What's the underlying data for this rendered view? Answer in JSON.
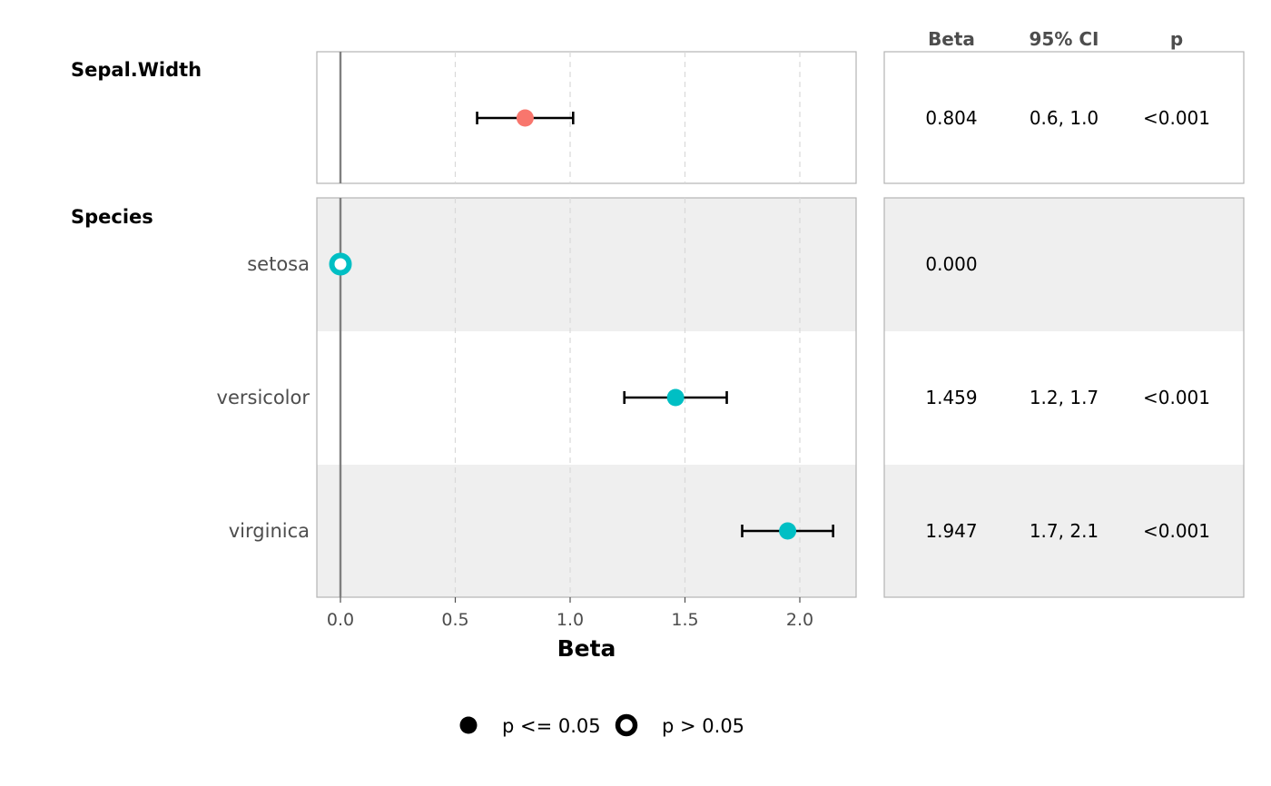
{
  "chart_data": {
    "type": "forest",
    "xlabel": "Beta",
    "xlim": [
      -0.1,
      2.25
    ],
    "xticks": [
      0.0,
      0.5,
      1.0,
      1.5,
      2.0
    ],
    "xtick_labels": [
      "0.0",
      "0.5",
      "1.0",
      "1.5",
      "2.0"
    ],
    "reference_line": 0,
    "groups": [
      {
        "name": "Sepal.Width",
        "rows": [
          {
            "label": "",
            "beta": 0.804,
            "ci_low": 0.595,
            "ci_high": 1.013,
            "significant": true,
            "color": "#F8766D",
            "beta_text": "0.804",
            "ci_text": "0.6, 1.0",
            "p_text": "<0.001"
          }
        ]
      },
      {
        "name": "Species",
        "rows": [
          {
            "label": "setosa",
            "beta": 0.0,
            "ci_low": null,
            "ci_high": null,
            "significant": false,
            "color": "#00BFC4",
            "beta_text": "0.000",
            "ci_text": "",
            "p_text": ""
          },
          {
            "label": "versicolor",
            "beta": 1.459,
            "ci_low": 1.236,
            "ci_high": 1.682,
            "significant": true,
            "color": "#00BFC4",
            "beta_text": "1.459",
            "ci_text": "1.2, 1.7",
            "p_text": "<0.001"
          },
          {
            "label": "virginica",
            "beta": 1.947,
            "ci_low": 1.749,
            "ci_high": 2.145,
            "significant": true,
            "color": "#00BFC4",
            "beta_text": "1.947",
            "ci_text": "1.7, 2.1",
            "p_text": "<0.001"
          }
        ]
      }
    ],
    "table_headers": [
      "Beta",
      "95% CI",
      "p"
    ],
    "legend": {
      "position": "bottom",
      "items": [
        {
          "label": "p <= 0.05",
          "shape": "filled-circle"
        },
        {
          "label": "p > 0.05",
          "shape": "open-circle"
        }
      ]
    }
  }
}
